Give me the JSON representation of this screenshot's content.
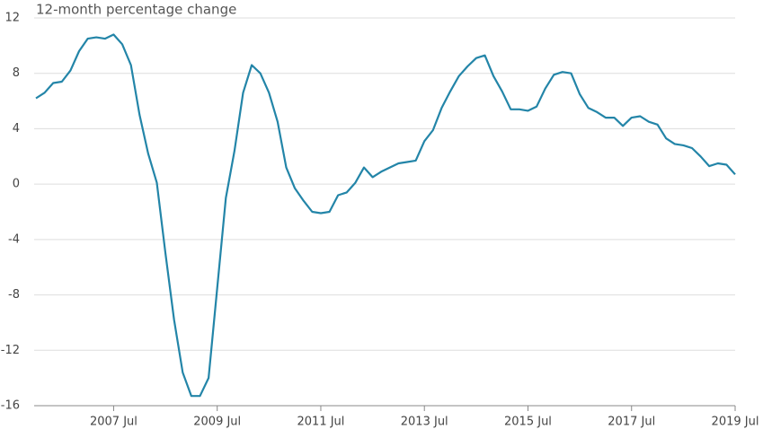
{
  "chart_data": {
    "type": "line",
    "y_axis_label": "12-month percentage change",
    "categories": [
      null,
      null,
      null,
      null,
      null,
      null,
      null,
      null,
      null,
      "2007 Jul",
      null,
      null,
      null,
      null,
      null,
      null,
      null,
      null,
      null,
      null,
      null,
      "2009 Jul",
      null,
      null,
      null,
      null,
      null,
      null,
      null,
      null,
      null,
      null,
      null,
      "2011 Jul",
      null,
      null,
      null,
      null,
      null,
      null,
      null,
      null,
      null,
      null,
      null,
      "2013 Jul",
      null,
      null,
      null,
      null,
      null,
      null,
      null,
      null,
      null,
      null,
      null,
      "2015 Jul",
      null,
      null,
      null,
      null,
      null,
      null,
      null,
      null,
      null,
      null,
      null,
      "2017 Jul",
      null,
      null,
      null,
      null,
      null,
      null,
      null,
      null,
      null,
      null,
      null,
      "2019 Jul"
    ],
    "series": [
      {
        "color": "#2385a8",
        "values": [
          6.2,
          6.6,
          7.3,
          7.4,
          8.2,
          9.6,
          10.5,
          10.6,
          10.5,
          10.8,
          10.1,
          8.6,
          5.0,
          2.2,
          0.1,
          -5.0,
          -9.8,
          -13.6,
          -15.3,
          -15.3,
          -14.0,
          -7.5,
          -1.0,
          2.4,
          6.6,
          8.6,
          8.0,
          6.6,
          4.5,
          1.2,
          -0.3,
          -1.2,
          -2.0,
          -2.1,
          -2.0,
          -0.8,
          -0.6,
          0.1,
          1.2,
          0.5,
          0.9,
          1.2,
          1.5,
          1.6,
          1.7,
          3.1,
          3.9,
          5.5,
          6.7,
          7.8,
          8.5,
          9.1,
          9.3,
          7.8,
          6.7,
          5.4,
          5.4,
          5.3,
          5.6,
          6.9,
          7.9,
          8.1,
          8.0,
          6.5,
          5.5,
          5.2,
          4.8,
          4.8,
          4.2,
          4.8,
          4.9,
          4.5,
          4.3,
          3.3,
          2.9,
          2.8,
          2.6,
          2.0,
          1.3,
          1.5,
          1.4,
          0.7
        ]
      }
    ],
    "ylim": [
      -16,
      12
    ],
    "yticks": [
      -16,
      -12,
      -8,
      -4,
      0,
      4,
      8,
      12
    ],
    "grid": true
  }
}
